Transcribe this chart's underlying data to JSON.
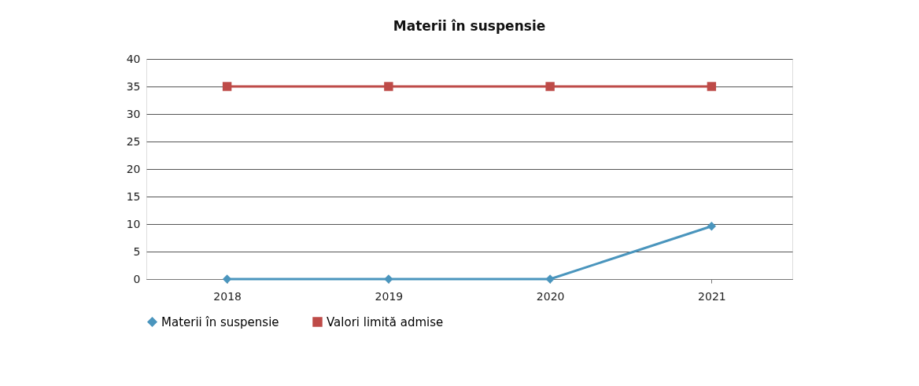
{
  "chart_data": {
    "type": "line",
    "title": "Materii în suspensie",
    "categories": [
      "2018",
      "2019",
      "2020",
      "2021"
    ],
    "series": [
      {
        "name": "Materii în suspensie",
        "color": "#4a95bd",
        "marker": "diamond",
        "values": [
          0,
          0,
          0,
          9.6
        ]
      },
      {
        "name": "Valori limită admise",
        "color": "#be4b48",
        "marker": "square",
        "values": [
          35,
          35,
          35,
          35
        ]
      }
    ],
    "ylim": [
      0,
      40
    ],
    "yticks": [
      0,
      5,
      10,
      15,
      20,
      25,
      30,
      35,
      40
    ],
    "grid": "y",
    "legend": "bottom",
    "line_style": "solid"
  }
}
